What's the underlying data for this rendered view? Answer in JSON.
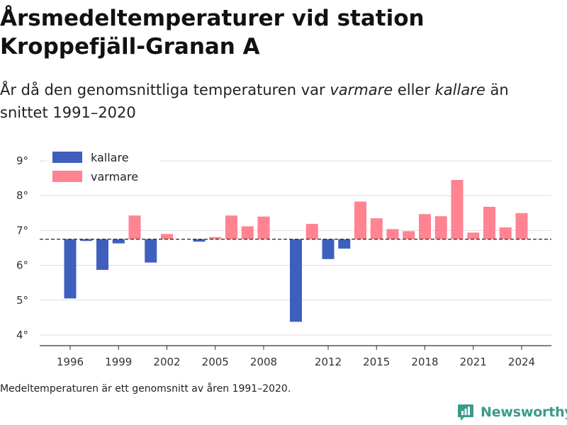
{
  "title_line1": "Årsmedeltemperaturer vid station",
  "title_line2": "Kroppefjäll-Granan A",
  "subtitle": {
    "part1": "År då den genomsnittliga temperaturen var ",
    "warmer": "varmare",
    "part2": " eller ",
    "colder": "kallare",
    "part3": " än snittet 1991–2020"
  },
  "footnote": "Medeltemperaturen är ett genomsnitt av åren 1991–2020.",
  "brand": "Newsworthy",
  "colors": {
    "colder": "#3f5fbf",
    "warmer": "#ff8391",
    "baseline": "#333333",
    "grid": "#dddddd",
    "brand": "#3a9a8c"
  },
  "chart_data": {
    "type": "bar",
    "baseline": 6.75,
    "ylim": [
      3.8,
      9.2
    ],
    "yticks": [
      4,
      5,
      6,
      7,
      8,
      9
    ],
    "ytick_labels": [
      "4°",
      "5°",
      "6°",
      "7°",
      "8°",
      "9°"
    ],
    "xticks": [
      1996,
      1999,
      2002,
      2005,
      2008,
      2012,
      2015,
      2018,
      2021,
      2024
    ],
    "xtick_labels": [
      "1996",
      "1999",
      "2002",
      "2005",
      "2008",
      "2012",
      "2015",
      "2018",
      "2021",
      "2024"
    ],
    "legend": [
      {
        "key": "colder",
        "label": "kallare"
      },
      {
        "key": "warmer",
        "label": "varmare"
      }
    ],
    "legend_placement": "top-left",
    "grid": true,
    "years": [
      1996,
      1997,
      1998,
      1999,
      2000,
      2001,
      2002,
      2004,
      2005,
      2006,
      2007,
      2008,
      2010,
      2011,
      2012,
      2013,
      2014,
      2015,
      2016,
      2017,
      2018,
      2019,
      2020,
      2021,
      2022,
      2023,
      2024
    ],
    "values": [
      5.05,
      6.7,
      5.87,
      6.63,
      7.43,
      6.08,
      6.9,
      6.68,
      6.81,
      7.43,
      7.12,
      7.4,
      4.38,
      7.19,
      6.18,
      6.48,
      7.83,
      7.35,
      7.04,
      6.98,
      7.47,
      7.41,
      8.45,
      6.94,
      7.68,
      7.09,
      7.5
    ]
  }
}
